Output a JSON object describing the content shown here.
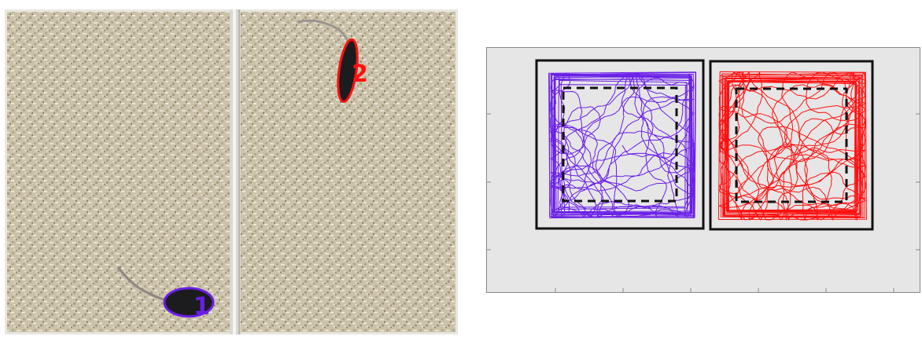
{
  "colors": {
    "mouse_1": "#6a1ee8",
    "mouse_2": "#ff1010",
    "bedding": "#c9bfa8",
    "plot_background": "#e6e6e6",
    "arena_border": "#111111"
  },
  "photo": {
    "mice": [
      {
        "label": "1",
        "color": "#6a1ee8"
      },
      {
        "label": "2",
        "color": "#ff1010"
      }
    ]
  },
  "trajectory_plot": {
    "arenas": [
      {
        "mouse": "1",
        "color": "#6a1ee8",
        "center_zone": "dashed-square"
      },
      {
        "mouse": "2",
        "color": "#ff1010",
        "center_zone": "dashed-square"
      }
    ],
    "grid": false
  }
}
